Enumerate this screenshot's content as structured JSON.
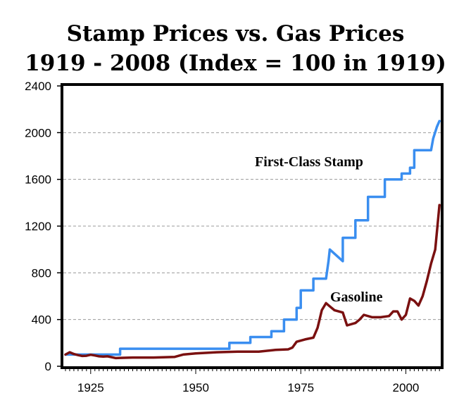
{
  "chart_data": {
    "type": "line",
    "title_line1": "Stamp Prices vs. Gas Prices",
    "title_line2": "1919 - 2008 (Index = 100 in 1919)",
    "xlabel": "",
    "ylabel": "",
    "xlim": [
      1918.5,
      2008.3
    ],
    "ylim": [
      0,
      2400
    ],
    "x_ticks": [
      1925,
      1950,
      1975,
      2000
    ],
    "y_ticks": [
      0,
      400,
      800,
      1200,
      1600,
      2000,
      2400
    ],
    "grid": "horizontal dashed",
    "colors": {
      "stamp": "#3a8ef0",
      "gas": "#7a1010",
      "grid": "#999999",
      "frame": "#000000"
    },
    "series": [
      {
        "name": "First-Class Stamp",
        "label_text": "First-Class Stamp",
        "x": [
          1919,
          1932,
          1932,
          1958,
          1958,
          1963,
          1963,
          1968,
          1968,
          1971,
          1971,
          1974,
          1974,
          1975,
          1975,
          1978,
          1978,
          1981,
          1981.6,
          1981.9,
          1985,
          1985,
          1988,
          1988,
          1991,
          1991,
          1995,
          1995,
          1999,
          1999,
          2001,
          2001,
          2002,
          2002,
          2006,
          2006.5,
          2007.4,
          2008
        ],
        "values": [
          100,
          100,
          150,
          150,
          200,
          200,
          250,
          250,
          300,
          300,
          400,
          400,
          500,
          500,
          650,
          650,
          750,
          750,
          900,
          1000,
          900,
          1100,
          1100,
          1250,
          1250,
          1450,
          1450,
          1600,
          1600,
          1650,
          1650,
          1700,
          1700,
          1850,
          1850,
          1950,
          2050,
          2100
        ]
      },
      {
        "name": "Gasoline",
        "label_text": "Gasoline",
        "x": [
          1919,
          1920,
          1921,
          1922,
          1923,
          1924,
          1925,
          1926,
          1927,
          1928,
          1929,
          1930,
          1931,
          1932,
          1935,
          1940,
          1945,
          1947,
          1950,
          1955,
          1960,
          1965,
          1969,
          1972,
          1973,
          1974,
          1976,
          1978,
          1979,
          1980,
          1981,
          1982,
          1983,
          1985,
          1986,
          1988,
          1989,
          1990,
          1992,
          1994,
          1996,
          1997,
          1998,
          1999,
          2000,
          2001,
          2002,
          2003,
          2004,
          2005,
          2006,
          2007,
          2008
        ],
        "values": [
          100,
          120,
          105,
          95,
          88,
          90,
          98,
          92,
          85,
          83,
          85,
          78,
          70,
          72,
          75,
          75,
          80,
          100,
          110,
          120,
          125,
          125,
          140,
          145,
          160,
          210,
          230,
          245,
          330,
          480,
          540,
          510,
          480,
          460,
          350,
          370,
          400,
          440,
          420,
          420,
          430,
          470,
          470,
          400,
          440,
          580,
          560,
          520,
          600,
          730,
          880,
          1000,
          1380
        ]
      }
    ]
  }
}
